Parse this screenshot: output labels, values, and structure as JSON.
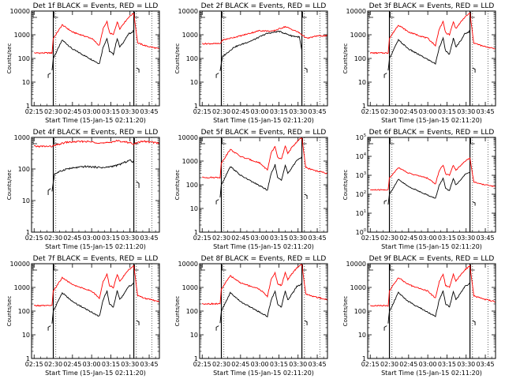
{
  "chart_data": [
    {
      "type": "line",
      "title": "Det 1f BLACK = Events, RED = LLD",
      "xlabel": "Start Time (15-Jan-15 02:11:20)",
      "ylabel": "Counts/sec",
      "yscale": "log",
      "ylim": [
        1,
        10000
      ],
      "ytick_style": "plain",
      "xticks": [
        "02:15",
        "02:30",
        "02:45",
        "03:00",
        "03:15",
        "03:30",
        "03:45"
      ],
      "series": [
        {
          "color": "#000000",
          "profile": "flare",
          "scale": 1
        },
        {
          "color": "#ff0000",
          "profile": "flare_red",
          "scale": 1
        }
      ]
    },
    {
      "type": "line",
      "title": "Det 2f BLACK = Events, RED = LLD",
      "xlabel": "Start Time (15-Jan-15 02:11:20)",
      "ylabel": "Counts/sec",
      "yscale": "log",
      "ylim": [
        1,
        10000
      ],
      "ytick_style": "plain",
      "xticks": [
        "02:15",
        "02:30",
        "02:45",
        "03:00",
        "03:15",
        "03:30",
        "03:45"
      ],
      "series": [
        {
          "color": "#000000",
          "profile": "arch",
          "scale": 1
        },
        {
          "color": "#ff0000",
          "profile": "arch_red",
          "scale": 1
        }
      ]
    },
    {
      "type": "line",
      "title": "Det 3f BLACK = Events, RED = LLD",
      "xlabel": "Start Time (15-Jan-15 02:11:20)",
      "ylabel": "Counts/sec",
      "yscale": "log",
      "ylim": [
        1,
        10000
      ],
      "ytick_style": "plain",
      "xticks": [
        "02:15",
        "02:30",
        "02:45",
        "03:00",
        "03:15",
        "03:30",
        "03:45"
      ],
      "series": [
        {
          "color": "#000000",
          "profile": "flare",
          "scale": 1
        },
        {
          "color": "#ff0000",
          "profile": "flare_red",
          "scale": 1
        }
      ]
    },
    {
      "type": "line",
      "title": "Det 4f BLACK = Events, RED = LLD",
      "xlabel": "Start Time (15-Jan-15 02:11:20)",
      "ylabel": "Counts/sec",
      "yscale": "log",
      "ylim": [
        1,
        1000
      ],
      "ytick_style": "plain",
      "xticks": [
        "02:15",
        "02:30",
        "02:45",
        "03:00",
        "03:15",
        "03:30",
        "03:45"
      ],
      "series": [
        {
          "color": "#000000",
          "profile": "flat",
          "scale": 1
        },
        {
          "color": "#ff0000",
          "profile": "flat_red",
          "scale": 1
        }
      ]
    },
    {
      "type": "line",
      "title": "Det 5f BLACK = Events, RED = LLD",
      "xlabel": "Start Time (15-Jan-15 02:11:20)",
      "ylabel": "Counts/sec",
      "yscale": "log",
      "ylim": [
        1,
        10000
      ],
      "ytick_style": "plain",
      "xticks": [
        "02:15",
        "02:30",
        "02:45",
        "03:00",
        "03:15",
        "03:30",
        "03:45"
      ],
      "series": [
        {
          "color": "#000000",
          "profile": "flare",
          "scale": 1
        },
        {
          "color": "#ff0000",
          "profile": "flare_red",
          "scale": 1.2
        }
      ]
    },
    {
      "type": "line",
      "title": "Det 6f BLACK = Events, RED = LLD",
      "xlabel": "Start Time (15-Jan-15 02:11:20)",
      "ylabel": "Counts/sec",
      "yscale": "log",
      "ylim": [
        1,
        100000
      ],
      "ytick_style": "power",
      "xticks": [
        "02:15",
        "02:30",
        "02:45",
        "03:00",
        "03:15",
        "03:30",
        "03:45"
      ],
      "series": [
        {
          "color": "#000000",
          "profile": "flare",
          "scale": 1
        },
        {
          "color": "#ff0000",
          "profile": "flare_red",
          "scale": 1
        }
      ]
    },
    {
      "type": "line",
      "title": "Det 7f BLACK = Events, RED = LLD",
      "xlabel": "Start Time (15-Jan-15 02:11:20)",
      "ylabel": "Counts/sec",
      "yscale": "log",
      "ylim": [
        1,
        10000
      ],
      "ytick_style": "plain",
      "xticks": [
        "02:15",
        "02:30",
        "02:45",
        "03:00",
        "03:15",
        "03:30",
        "03:45"
      ],
      "series": [
        {
          "color": "#000000",
          "profile": "flare",
          "scale": 1
        },
        {
          "color": "#ff0000",
          "profile": "flare_red",
          "scale": 1
        }
      ]
    },
    {
      "type": "line",
      "title": "Det 8f BLACK = Events, RED = LLD",
      "xlabel": "Start Time (15-Jan-15 02:11:20)",
      "ylabel": "Counts/sec",
      "yscale": "log",
      "ylim": [
        1,
        10000
      ],
      "ytick_style": "plain",
      "xticks": [
        "02:15",
        "02:30",
        "02:45",
        "03:00",
        "03:15",
        "03:30",
        "03:45"
      ],
      "series": [
        {
          "color": "#000000",
          "profile": "flare",
          "scale": 1
        },
        {
          "color": "#ff0000",
          "profile": "flare_red",
          "scale": 1.2
        }
      ]
    },
    {
      "type": "line",
      "title": "Det 9f BLACK = Events, RED = LLD",
      "xlabel": "Start Time (15-Jan-15 02:11:20)",
      "ylabel": "Counts/sec",
      "yscale": "log",
      "ylim": [
        1,
        10000
      ],
      "ytick_style": "plain",
      "xticks": [
        "02:15",
        "02:30",
        "02:45",
        "03:00",
        "03:15",
        "03:30",
        "03:45"
      ],
      "series": [
        {
          "color": "#000000",
          "profile": "flare",
          "scale": 1
        },
        {
          "color": "#ff0000",
          "profile": "flare_red",
          "scale": 1
        }
      ]
    }
  ]
}
